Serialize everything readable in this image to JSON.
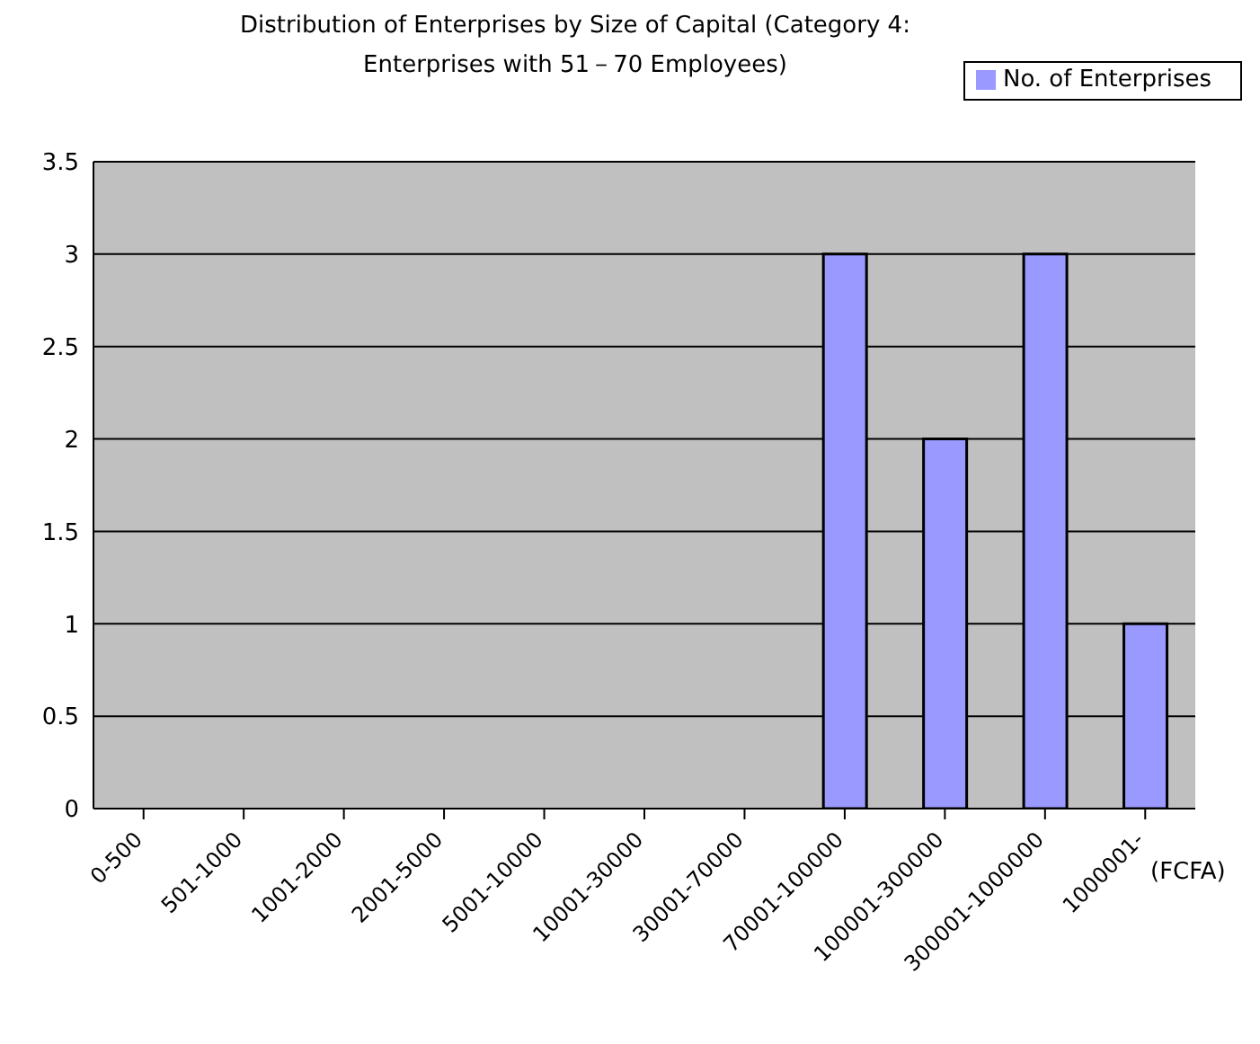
{
  "chart_data": {
    "type": "bar",
    "title": "Distribution of Enterprises by Size of Capital (Category 4:\nEnterprises with 51－70 Employees)",
    "xlabel": "(FCFA)",
    "categories": [
      "0-500",
      "501-1000",
      "1001-2000",
      "2001-5000",
      "5001-10000",
      "10001-30000",
      "30001-70000",
      "70001-100000",
      "100001-300000",
      "300001-1000000",
      "1000001-"
    ],
    "series": [
      {
        "name": "No. of Enterprises",
        "color": "#9999ff",
        "values": [
          0,
          0,
          0,
          0,
          0,
          0,
          0,
          3,
          2,
          3,
          1
        ]
      }
    ],
    "ylim": [
      0,
      3.5
    ],
    "yticks": [
      0,
      0.5,
      1,
      1.5,
      2,
      2.5,
      3,
      3.5
    ],
    "grid": "y",
    "legend": "top right"
  }
}
